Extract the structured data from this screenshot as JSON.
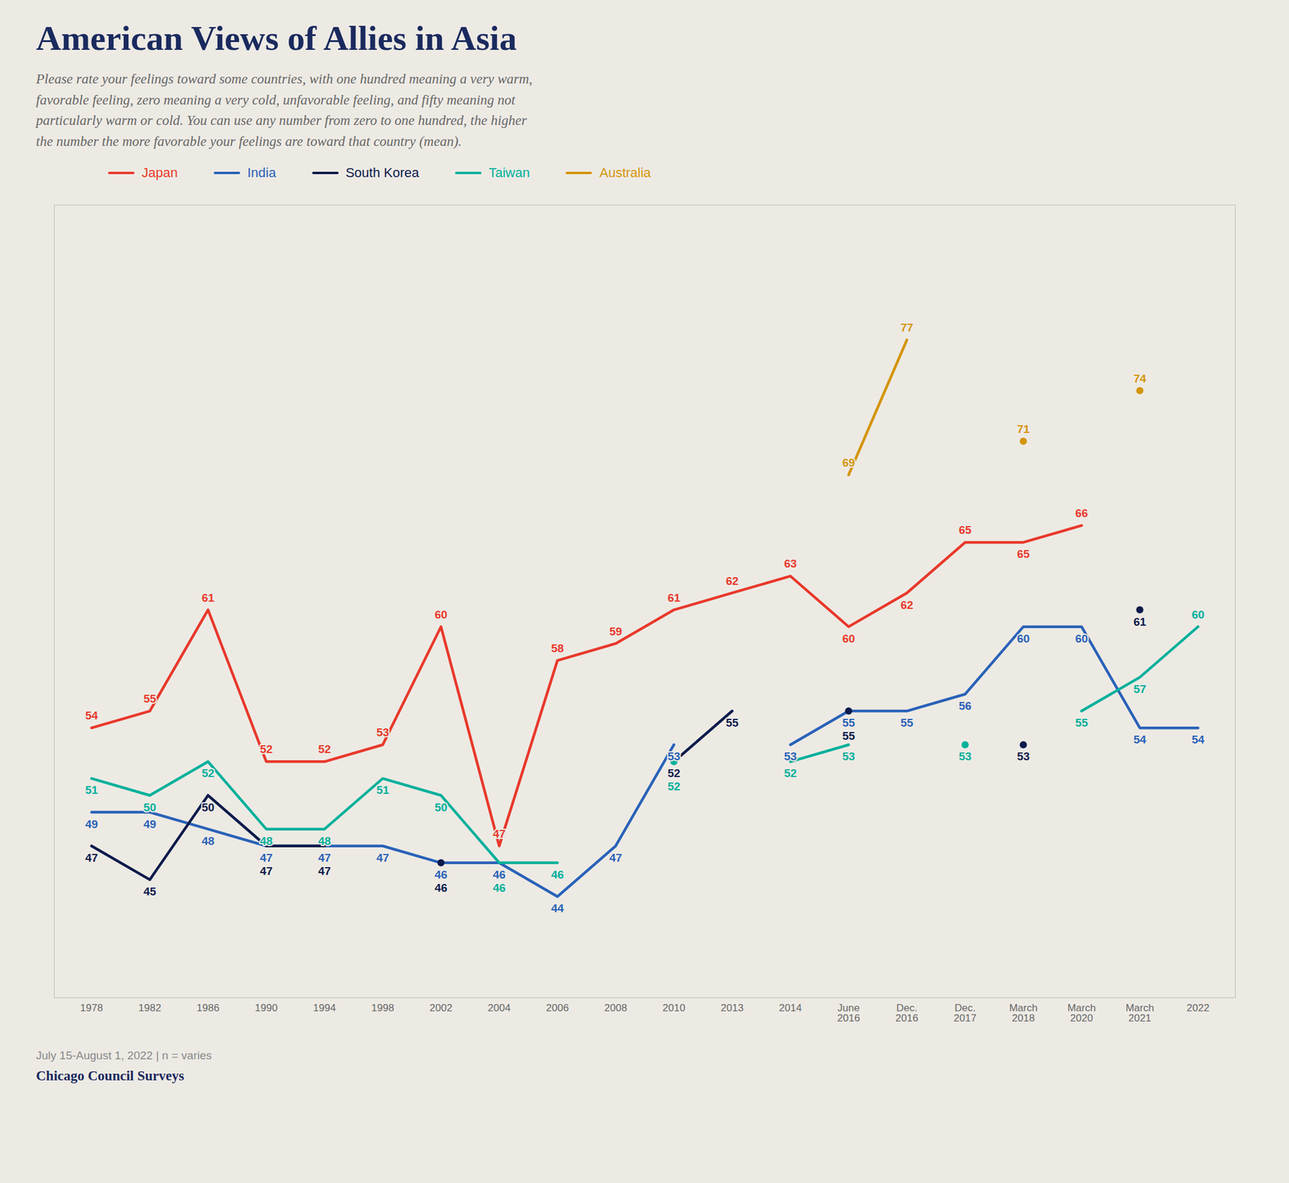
{
  "chart_data": {
    "type": "line",
    "title": "American Views of Allies in Asia",
    "subtitle": "Please rate your feelings toward some countries, with one hundred meaning a very warm,\nfavorable feeling, zero meaning a very cold, unfavorable feeling, and fifty meaning not\nparticularly warm or cold. You can use any number from zero to one hundred, the higher\nthe number the more favorable your feelings are toward that country (mean).",
    "annotations": [
      "July 15-August 1, 2022  |  n = varies",
      "Chicago Council Surveys"
    ],
    "categories": [
      "1978",
      "1982",
      "1986",
      "1990",
      "1994",
      "1998",
      "2002",
      "2004",
      "2006",
      "2008",
      "2010",
      "2013",
      "2014",
      "June\n2016",
      "Dec.\n2016",
      "Dec.\n2017",
      "March\n2018",
      "March\n2020",
      "March\n2021",
      "2022"
    ],
    "series": [
      {
        "name": "Japan",
        "color": "#e8392b",
        "values": [
          54,
          55,
          61,
          52,
          52,
          53,
          60,
          47,
          58,
          59,
          61,
          62,
          63,
          60,
          62,
          65,
          65,
          66,
          null,
          null
        ]
      },
      {
        "name": "India",
        "color": "#2962b8",
        "values": [
          49,
          49,
          48,
          47,
          47,
          47,
          46,
          46,
          44,
          47,
          53,
          null,
          53,
          55,
          55,
          56,
          60,
          60,
          54,
          54
        ]
      },
      {
        "name": "South Korea",
        "color": "#0d1b4b",
        "values": [
          47,
          45,
          50,
          47,
          47,
          null,
          46,
          null,
          null,
          null,
          52,
          55,
          null,
          55,
          null,
          null,
          53,
          null,
          61,
          null
        ]
      },
      {
        "name": "Taiwan",
        "color": "#00b09b",
        "values": [
          51,
          50,
          52,
          48,
          48,
          51,
          50,
          46,
          46,
          null,
          52,
          null,
          52,
          53,
          null,
          53,
          null,
          55,
          57,
          60
        ]
      },
      {
        "name": "Australia",
        "color": "#d4950a",
        "values": [
          null,
          null,
          null,
          null,
          null,
          null,
          null,
          null,
          null,
          null,
          null,
          null,
          null,
          69,
          77,
          null,
          71,
          null,
          74,
          null
        ]
      }
    ],
    "ylim": [
      38,
      85
    ],
    "grid": false,
    "legend": "top",
    "data_labels": true,
    "tick_labels": "x"
  }
}
